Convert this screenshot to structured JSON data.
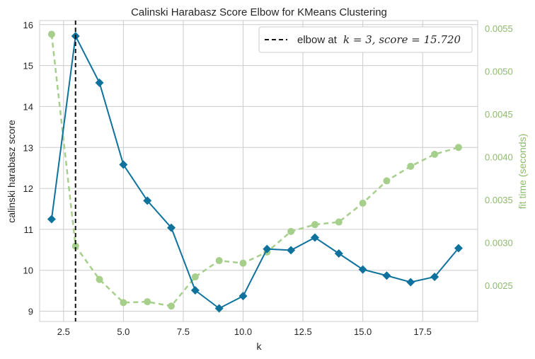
{
  "chart_data": {
    "type": "line",
    "title": "Calinski Harabasz Score Elbow for KMeans Clustering",
    "xlabel": "k",
    "ylabel": "calinski harabasz score",
    "y2label": "fit time (seconds)",
    "xlim": [
      1.5,
      19.8
    ],
    "ylim": [
      8.75,
      16.1
    ],
    "y2lim": [
      0.00208,
      0.00559
    ],
    "xticks": [
      "2.5",
      "5.0",
      "7.5",
      "10.0",
      "12.5",
      "15.0",
      "17.5"
    ],
    "xtick_values": [
      2.5,
      5.0,
      7.5,
      10.0,
      12.5,
      15.0,
      17.5
    ],
    "yticks": [
      "9",
      "10",
      "11",
      "12",
      "13",
      "14",
      "15",
      "16"
    ],
    "ytick_values": [
      9,
      10,
      11,
      12,
      13,
      14,
      15,
      16
    ],
    "y2ticks": [
      "0.0025",
      "0.0030",
      "0.0035",
      "0.0040",
      "0.0045",
      "0.0050",
      "0.0055"
    ],
    "y2tick_values": [
      0.0025,
      0.003,
      0.0035,
      0.004,
      0.0045,
      0.005,
      0.0055
    ],
    "grid": true,
    "series": [
      {
        "axis": "left",
        "color": "#0e729d",
        "marker": "diamond",
        "x": [
          2,
          3,
          4,
          5,
          6,
          7,
          8,
          9,
          10,
          11,
          12,
          13,
          14,
          15,
          16,
          17,
          18,
          19
        ],
        "values": [
          11.25,
          15.72,
          14.58,
          12.58,
          11.7,
          11.04,
          9.51,
          9.07,
          9.37,
          10.52,
          10.49,
          10.8,
          10.41,
          10.02,
          9.87,
          9.71,
          9.84,
          10.54
        ]
      },
      {
        "axis": "right",
        "color": "#a6cf8b",
        "marker": "circle",
        "dashed": true,
        "x": [
          2,
          3,
          4,
          5,
          6,
          7,
          8,
          9,
          10,
          11,
          12,
          13,
          14,
          15,
          16,
          17,
          18,
          19
        ],
        "values": [
          0.00543,
          0.00296,
          0.00257,
          0.0023,
          0.00231,
          0.00226,
          0.0026,
          0.00279,
          0.00276,
          0.00289,
          0.00313,
          0.00321,
          0.00324,
          0.00346,
          0.00372,
          0.00389,
          0.00403,
          0.00411
        ]
      }
    ],
    "elbow": {
      "k": 3,
      "legend_prefix": "elbow at",
      "legend_math": "k = 3, score = 15.720",
      "legend_placement": "top-right"
    }
  }
}
